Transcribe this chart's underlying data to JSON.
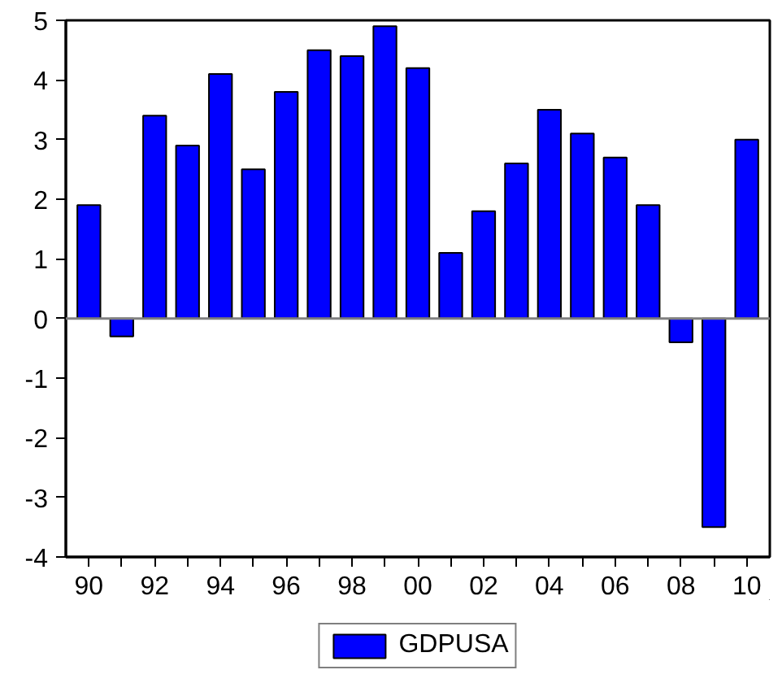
{
  "chart_data": {
    "type": "bar",
    "categories": [
      "90",
      null,
      "92",
      null,
      "94",
      null,
      "96",
      null,
      "98",
      null,
      "00",
      null,
      "02",
      null,
      "04",
      null,
      "06",
      null,
      "08",
      null,
      "10"
    ],
    "series": [
      {
        "name": "GDPUSA",
        "color": "#0000ff",
        "values": [
          1.9,
          -0.3,
          3.4,
          2.9,
          4.1,
          2.5,
          3.8,
          4.5,
          4.4,
          4.9,
          4.2,
          1.1,
          1.8,
          2.6,
          3.5,
          3.1,
          2.7,
          1.9,
          -0.4,
          -3.5,
          3.0
        ]
      }
    ],
    "ylim": [
      -4,
      5
    ],
    "yticks": [
      -4,
      -3,
      -2,
      -1,
      0,
      1,
      2,
      3,
      4,
      5
    ],
    "ref_lines": [
      {
        "axis": "y",
        "value": 0,
        "color": "#808080"
      }
    ],
    "grid": false,
    "legend": "bottom"
  }
}
